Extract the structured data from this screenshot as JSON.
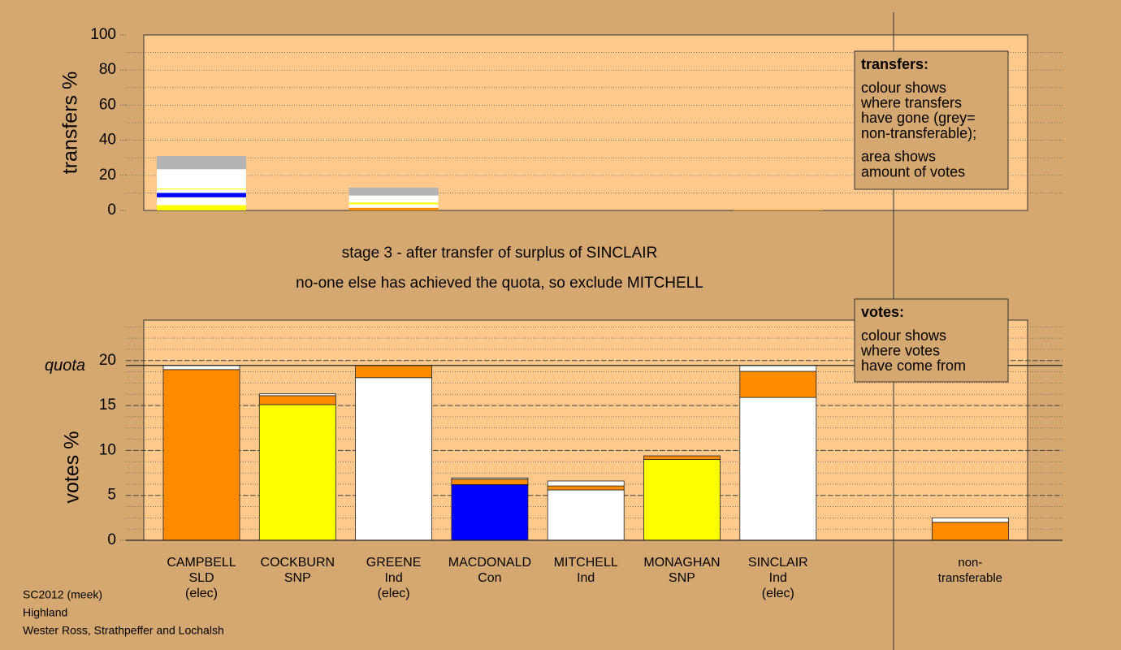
{
  "chart_data": [
    {
      "type": "stacked-bar",
      "ylabel": "transfers %",
      "ylim": [
        0,
        100
      ],
      "yticks": [
        0,
        20,
        40,
        60,
        80,
        100
      ],
      "grid": true,
      "minor_grid": 10,
      "bars": [
        {
          "segments": [
            {
              "color": "#ffff00",
              "value": 3
            },
            {
              "color": "#ffffff",
              "value": 4.5
            },
            {
              "color": "#0000ff",
              "value": 2.5
            },
            {
              "color": "#ffffff",
              "value": 2
            },
            {
              "color": "#ffff00",
              "value": 0.5
            },
            {
              "color": "#ffffff",
              "value": 11
            },
            {
              "color": "#b4b4b4",
              "value": 7.5
            }
          ]
        },
        {
          "segments": []
        },
        {
          "segments": [
            {
              "color": "#ff8c00",
              "value": 1.5
            },
            {
              "color": "#ffffff",
              "value": 2
            },
            {
              "color": "#ffff00",
              "value": 1
            },
            {
              "color": "#ffffff",
              "value": 4
            },
            {
              "color": "#b4b4b4",
              "value": 4.5
            }
          ]
        },
        {
          "segments": []
        },
        {
          "segments": []
        },
        {
          "segments": []
        },
        {
          "segments": [
            {
              "color": "#ff8c00",
              "value": 0.3
            }
          ]
        }
      ]
    },
    {
      "type": "stacked-bar",
      "ylabel": "votes %",
      "ylim": [
        0,
        24.5
      ],
      "yticks": [
        0,
        5,
        10,
        15,
        20
      ],
      "grid": true,
      "minor_grid": 1.25,
      "quota": 19.46,
      "quota_label": "quota",
      "categories": [
        [
          "CAMPBELL",
          "SLD",
          "(elec)"
        ],
        [
          "COCKBURN",
          "SNP"
        ],
        [
          "GREENE",
          "Ind",
          "(elec)"
        ],
        [
          "MACDONALD",
          "Con"
        ],
        [
          "MITCHELL",
          "Ind"
        ],
        [
          "MONAGHAN",
          "SNP"
        ],
        [
          "SINCLAIR",
          "Ind",
          "(elec)"
        ],
        [
          "non-",
          "transferable"
        ]
      ],
      "bars": [
        {
          "segments": [
            {
              "color": "#ff8c00",
              "value": 19.0
            },
            {
              "color": "#ffffff",
              "value": 0.46
            }
          ]
        },
        {
          "segments": [
            {
              "color": "#ffff00",
              "value": 15.1
            },
            {
              "color": "#ff8c00",
              "value": 1.0
            },
            {
              "color": "#ffffff",
              "value": 0.2
            }
          ]
        },
        {
          "segments": [
            {
              "color": "#ffffff",
              "value": 18.1
            },
            {
              "color": "#ff8c00",
              "value": 1.36
            }
          ]
        },
        {
          "segments": [
            {
              "color": "#0000ff",
              "value": 6.2
            },
            {
              "color": "#ff8c00",
              "value": 0.6
            },
            {
              "color": "#ffffff",
              "value": 0.15
            }
          ]
        },
        {
          "segments": [
            {
              "color": "#ffffff",
              "value": 5.6
            },
            {
              "color": "#ff8c00",
              "value": 0.45
            },
            {
              "color": "#ffffff",
              "value": 0.55
            }
          ]
        },
        {
          "segments": [
            {
              "color": "#ffff00",
              "value": 9.0
            },
            {
              "color": "#ff8c00",
              "value": 0.4
            }
          ]
        },
        {
          "segments": [
            {
              "color": "#ffffff",
              "value": 15.9
            },
            {
              "color": "#ff8c00",
              "value": 2.9
            },
            {
              "color": "#ffffff",
              "value": 0.66
            }
          ]
        },
        {
          "segments": [
            {
              "color": "#ff8c00",
              "value": 2.0
            },
            {
              "color": "#ffffff",
              "value": 0.5
            }
          ]
        }
      ]
    }
  ],
  "caption": [
    "stage 3 - after transfer of surplus of SINCLAIR",
    "no-one else has achieved the quota, so exclude MITCHELL"
  ],
  "legends": [
    {
      "title": "transfers:",
      "paragraphs": [
        [
          "colour shows",
          "where transfers",
          "have gone (grey=",
          "non-transferable);"
        ],
        [
          "area shows",
          "amount of votes"
        ]
      ]
    },
    {
      "title": "votes:",
      "paragraphs": [
        [
          "colour shows",
          "where votes",
          "have come from"
        ]
      ]
    }
  ],
  "footer": [
    "SC2012 (meek)",
    "Highland",
    "Wester Ross, Strathpeffer and Lochalsh"
  ]
}
